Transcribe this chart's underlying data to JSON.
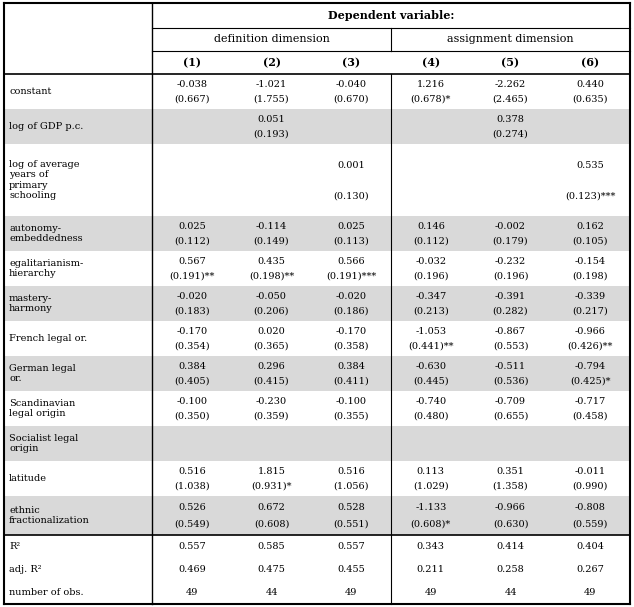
{
  "rows": [
    {
      "label": "constant",
      "values": [
        "-0.038",
        "-1.021",
        "-0.040",
        "1.216",
        "-2.262",
        "0.440"
      ],
      "se": [
        "(0.667)",
        "(1.755)",
        "(0.670)",
        "(0.678)*",
        "(2.465)",
        "(0.635)"
      ],
      "shaded": false,
      "two_line_label": false
    },
    {
      "label": "log of GDP p.c.",
      "values": [
        "",
        "0.051",
        "",
        "",
        "0.378",
        ""
      ],
      "se": [
        "",
        "(0.193)",
        "",
        "",
        "(0.274)",
        ""
      ],
      "shaded": true,
      "two_line_label": false
    },
    {
      "label": "log of average\nyears of\nprimary\nschooling",
      "values": [
        "",
        "",
        "0.001",
        "",
        "",
        "0.535"
      ],
      "se": [
        "",
        "",
        "(0.130)",
        "",
        "",
        "(0.123)***"
      ],
      "shaded": false,
      "two_line_label": false
    },
    {
      "label": "autonomy-\nembeddedness",
      "values": [
        "0.025",
        "-0.114",
        "0.025",
        "0.146",
        "-0.002",
        "0.162"
      ],
      "se": [
        "(0.112)",
        "(0.149)",
        "(0.113)",
        "(0.112)",
        "(0.179)",
        "(0.105)"
      ],
      "shaded": true,
      "two_line_label": false
    },
    {
      "label": "egalitarianism-\nhierarchy",
      "values": [
        "0.567",
        "0.435",
        "0.566",
        "-0.032",
        "-0.232",
        "-0.154"
      ],
      "se": [
        "(0.191)**",
        "(0.198)**",
        "(0.191)***",
        "(0.196)",
        "(0.196)",
        "(0.198)"
      ],
      "shaded": false,
      "two_line_label": false
    },
    {
      "label": "mastery-\nharmony",
      "values": [
        "-0.020",
        "-0.050",
        "-0.020",
        "-0.347",
        "-0.391",
        "-0.339"
      ],
      "se": [
        "(0.183)",
        "(0.206)",
        "(0.186)",
        "(0.213)",
        "(0.282)",
        "(0.217)"
      ],
      "shaded": true,
      "two_line_label": false
    },
    {
      "label": "French legal or.",
      "values": [
        "-0.170",
        "0.020",
        "-0.170",
        "-1.053",
        "-0.867",
        "-0.966"
      ],
      "se": [
        "(0.354)",
        "(0.365)",
        "(0.358)",
        "(0.441)**",
        "(0.553)",
        "(0.426)**"
      ],
      "shaded": false,
      "two_line_label": false
    },
    {
      "label": "German legal\nor.",
      "values": [
        "0.384",
        "0.296",
        "0.384",
        "-0.630",
        "-0.511",
        "-0.794"
      ],
      "se": [
        "(0.405)",
        "(0.415)",
        "(0.411)",
        "(0.445)",
        "(0.536)",
        "(0.425)*"
      ],
      "shaded": true,
      "two_line_label": false
    },
    {
      "label": "Scandinavian\nlegal origin",
      "values": [
        "-0.100",
        "-0.230",
        "-0.100",
        "-0.740",
        "-0.709",
        "-0.717"
      ],
      "se": [
        "(0.350)",
        "(0.359)",
        "(0.355)",
        "(0.480)",
        "(0.655)",
        "(0.458)"
      ],
      "shaded": false,
      "two_line_label": false
    },
    {
      "label": "Socialist legal\norigin",
      "values": [
        "",
        "",
        "",
        "",
        "",
        ""
      ],
      "se": [
        "",
        "",
        "",
        "",
        "",
        ""
      ],
      "shaded": true,
      "two_line_label": false
    },
    {
      "label": "latitude",
      "values": [
        "0.516",
        "1.815",
        "0.516",
        "0.113",
        "0.351",
        "-0.011"
      ],
      "se": [
        "(1.038)",
        "(0.931)*",
        "(1.056)",
        "(1.029)",
        "(1.358)",
        "(0.990)"
      ],
      "shaded": false,
      "two_line_label": false
    },
    {
      "label": "ethnic\nfractionalization",
      "values": [
        "0.526",
        "0.672",
        "0.528",
        "-1.133",
        "-0.966",
        "-0.808"
      ],
      "se": [
        "(0.549)",
        "(0.608)",
        "(0.551)",
        "(0.608)*",
        "(0.630)",
        "(0.559)"
      ],
      "shaded": true,
      "two_line_label": false
    }
  ],
  "stat_rows": [
    {
      "label": "R²",
      "values": [
        "0.557",
        "0.585",
        "0.557",
        "0.343",
        "0.414",
        "0.404"
      ],
      "shaded": false
    },
    {
      "label": "adj. R²",
      "values": [
        "0.469",
        "0.475",
        "0.455",
        "0.211",
        "0.258",
        "0.267"
      ],
      "shaded": false
    },
    {
      "label": "number of obs.",
      "values": [
        "49",
        "44",
        "49",
        "49",
        "44",
        "49"
      ],
      "shaded": false
    }
  ],
  "shaded_color": "#d9d9d9",
  "white_color": "#ffffff",
  "font_size": 7.0,
  "header_font_size": 8.0
}
